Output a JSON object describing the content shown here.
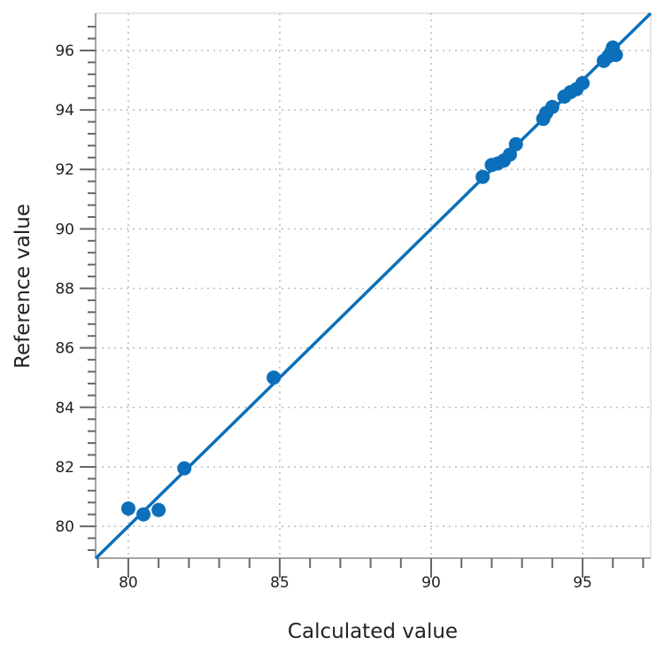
{
  "chart_data": {
    "type": "scatter",
    "title": "",
    "xlabel": "Calculated value",
    "ylabel": "Reference value",
    "xlim": [
      78.92,
      97.25
    ],
    "ylim": [
      78.93,
      97.25
    ],
    "xticks": [
      "80",
      "85",
      "90",
      "95"
    ],
    "yticks": [
      "80",
      "82",
      "84",
      "86",
      "88",
      "90",
      "92",
      "94",
      "96"
    ],
    "grid": true,
    "color": "#0b6fba",
    "fit_line": {
      "slope": 1,
      "intercept": 0
    },
    "points": [
      [
        80.0,
        80.6
      ],
      [
        80.5,
        80.4
      ],
      [
        81.0,
        80.55
      ],
      [
        81.85,
        81.95
      ],
      [
        84.8,
        85.0
      ],
      [
        91.7,
        91.75
      ],
      [
        92.0,
        92.15
      ],
      [
        92.2,
        92.2
      ],
      [
        92.4,
        92.3
      ],
      [
        92.6,
        92.5
      ],
      [
        92.8,
        92.85
      ],
      [
        93.7,
        93.7
      ],
      [
        93.8,
        93.9
      ],
      [
        94.0,
        94.1
      ],
      [
        94.4,
        94.45
      ],
      [
        94.6,
        94.6
      ],
      [
        94.8,
        94.7
      ],
      [
        95.0,
        94.9
      ],
      [
        95.7,
        95.65
      ],
      [
        95.85,
        95.8
      ],
      [
        96.0,
        96.1
      ],
      [
        96.1,
        95.85
      ],
      [
        95.95,
        95.95
      ]
    ]
  }
}
